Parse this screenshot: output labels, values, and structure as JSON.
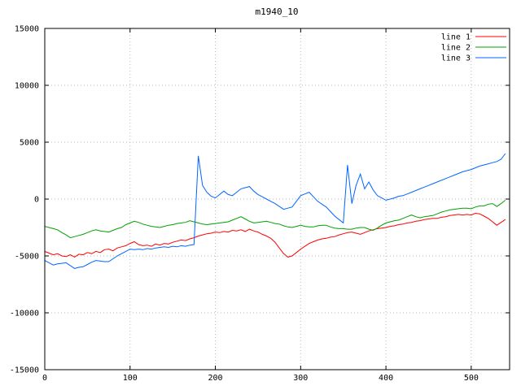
{
  "chart_data": {
    "type": "line",
    "title": "m1940_10",
    "xlabel": "",
    "ylabel": "",
    "xlim": [
      0,
      545
    ],
    "ylim": [
      -15000,
      15000
    ],
    "xticks": [
      0,
      100,
      200,
      300,
      400,
      500
    ],
    "yticks": [
      -15000,
      -10000,
      -5000,
      0,
      5000,
      10000,
      15000
    ],
    "grid": true,
    "grid_color": "#b9b9b9",
    "border_color": "#000000",
    "legend_position": "top-right-inside",
    "series": [
      {
        "name": "line 1",
        "color": "#ff0000",
        "x_start": 0,
        "x_step": 5,
        "values": [
          -4600,
          -4750,
          -4900,
          -4800,
          -5000,
          -5050,
          -4900,
          -5100,
          -4850,
          -4900,
          -4700,
          -4800,
          -4600,
          -4700,
          -4450,
          -4400,
          -4550,
          -4300,
          -4200,
          -4100,
          -3900,
          -3750,
          -4000,
          -4100,
          -4050,
          -4150,
          -3950,
          -4050,
          -3900,
          -3950,
          -3800,
          -3700,
          -3600,
          -3650,
          -3500,
          -3400,
          -3250,
          -3150,
          -3050,
          -3000,
          -2900,
          -2950,
          -2850,
          -2900,
          -2750,
          -2800,
          -2700,
          -2850,
          -2650,
          -2800,
          -2900,
          -3100,
          -3250,
          -3450,
          -3800,
          -4300,
          -4800,
          -5100,
          -5000,
          -4700,
          -4400,
          -4150,
          -3900,
          -3750,
          -3600,
          -3500,
          -3450,
          -3350,
          -3300,
          -3150,
          -3050,
          -2950,
          -2900,
          -3000,
          -3100,
          -2950,
          -2800,
          -2700,
          -2600,
          -2550,
          -2500,
          -2400,
          -2350,
          -2250,
          -2200,
          -2100,
          -2050,
          -1950,
          -1900,
          -1800,
          -1750,
          -1700,
          -1700,
          -1600,
          -1550,
          -1450,
          -1400,
          -1350,
          -1400,
          -1350,
          -1400,
          -1250,
          -1300,
          -1500,
          -1700,
          -2000,
          -2300,
          -2050,
          -1800
        ]
      },
      {
        "name": "line 2",
        "color": "#00a000",
        "x_start": 0,
        "x_step": 5,
        "values": [
          -2400,
          -2500,
          -2600,
          -2700,
          -2950,
          -3150,
          -3400,
          -3300,
          -3200,
          -3100,
          -2950,
          -2800,
          -2700,
          -2800,
          -2850,
          -2900,
          -2750,
          -2600,
          -2500,
          -2250,
          -2100,
          -1950,
          -2050,
          -2200,
          -2300,
          -2400,
          -2450,
          -2500,
          -2400,
          -2300,
          -2250,
          -2150,
          -2100,
          -2050,
          -1900,
          -2000,
          -2100,
          -2200,
          -2250,
          -2200,
          -2150,
          -2100,
          -2050,
          -2000,
          -1850,
          -1700,
          -1550,
          -1750,
          -1950,
          -2100,
          -2050,
          -2000,
          -1950,
          -2050,
          -2150,
          -2200,
          -2350,
          -2450,
          -2500,
          -2400,
          -2300,
          -2400,
          -2450,
          -2450,
          -2350,
          -2300,
          -2300,
          -2450,
          -2550,
          -2600,
          -2600,
          -2650,
          -2650,
          -2550,
          -2500,
          -2500,
          -2650,
          -2750,
          -2550,
          -2300,
          -2100,
          -2000,
          -1900,
          -1850,
          -1700,
          -1550,
          -1400,
          -1550,
          -1650,
          -1550,
          -1500,
          -1450,
          -1300,
          -1150,
          -1050,
          -950,
          -900,
          -850,
          -800,
          -800,
          -850,
          -700,
          -600,
          -600,
          -450,
          -400,
          -650,
          -400,
          -100
        ]
      },
      {
        "name": "line 3",
        "color": "#0066ff",
        "x_start": 0,
        "x_step": 5,
        "values": [
          -5400,
          -5600,
          -5800,
          -5700,
          -5650,
          -5600,
          -5850,
          -6100,
          -6000,
          -5950,
          -5750,
          -5550,
          -5400,
          -5450,
          -5500,
          -5500,
          -5250,
          -5000,
          -4800,
          -4600,
          -4400,
          -4450,
          -4400,
          -4450,
          -4350,
          -4400,
          -4300,
          -4250,
          -4200,
          -4250,
          -4150,
          -4200,
          -4100,
          -4150,
          -4050,
          -4000,
          3800,
          1200,
          600,
          250,
          100,
          400,
          700,
          400,
          300,
          600,
          900,
          1000,
          1100,
          700,
          400,
          200,
          0,
          -200,
          -400,
          -650,
          -900,
          -800,
          -700,
          -200,
          300,
          450,
          600,
          200,
          -200,
          -450,
          -700,
          -1100,
          -1500,
          -1800,
          -2100,
          3000,
          -400,
          1200,
          2200,
          900,
          1500,
          800,
          300,
          100,
          -100,
          0,
          100,
          250,
          300,
          450,
          600,
          750,
          900,
          1050,
          1200,
          1350,
          1500,
          1650,
          1800,
          1950,
          2100,
          2250,
          2400,
          2500,
          2600,
          2750,
          2900,
          3000,
          3100,
          3200,
          3300,
          3500,
          4000
        ]
      }
    ]
  }
}
